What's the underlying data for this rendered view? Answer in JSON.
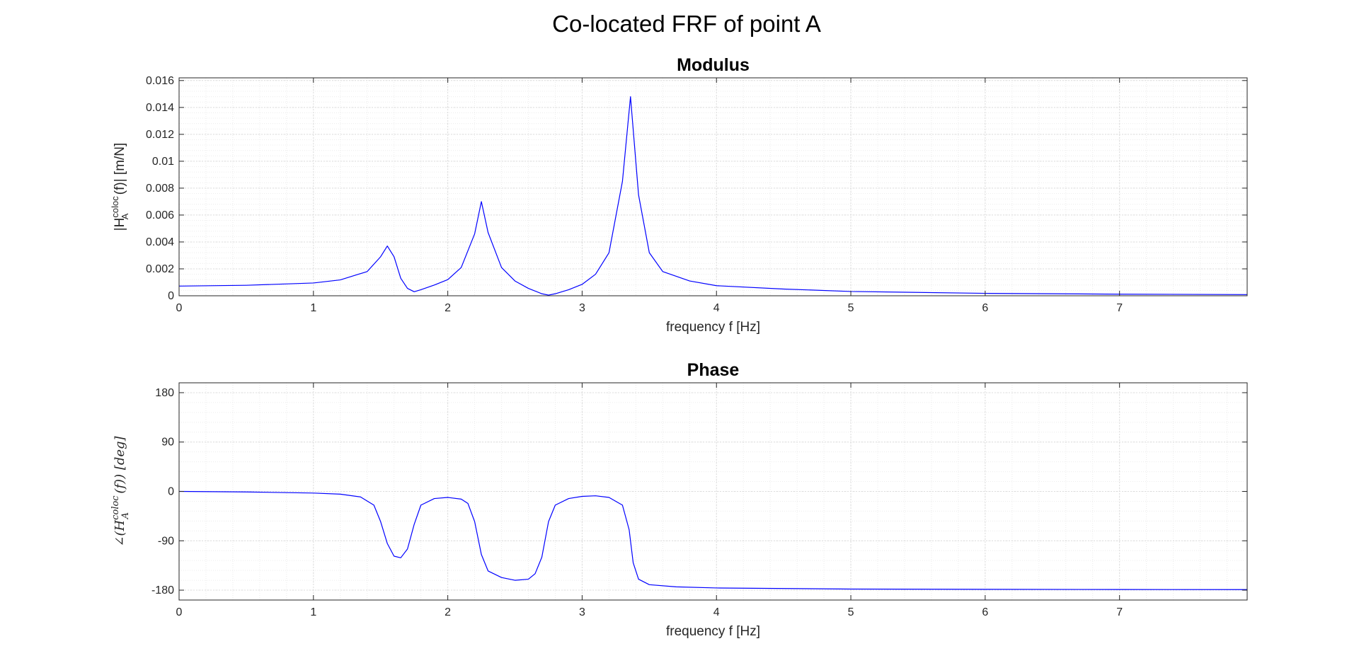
{
  "figure": {
    "title": "Co-located FRF of point A",
    "line_color": "#0000ff",
    "grid_color": "#dcdcdc",
    "minor_grid_color": "#ececec"
  },
  "chart_data": [
    {
      "type": "line",
      "title": "Modulus",
      "xlabel": "frequency f [Hz]",
      "ylabel": {
        "pre": "|H",
        "sup": "coloc",
        "sub": "A",
        "post": "(f)|   [m/N]"
      },
      "xlim": [
        0,
        7.95
      ],
      "ylim": [
        0,
        0.0162
      ],
      "xticks": [
        0,
        1,
        2,
        3,
        4,
        5,
        6,
        7
      ],
      "xtick_labels": [
        "0",
        "1",
        "2",
        "3",
        "4",
        "5",
        "6",
        "7"
      ],
      "yticks": [
        0,
        0.002,
        0.004,
        0.006,
        0.008,
        0.01,
        0.012,
        0.014,
        0.016
      ],
      "ytick_labels": [
        "0",
        "0.002",
        "0.004",
        "0.006",
        "0.008",
        "0.01",
        "0.012",
        "0.014",
        "0.016"
      ],
      "grid": "major+minor",
      "series": [
        {
          "x": [
            0,
            0.5,
            1.0,
            1.2,
            1.4,
            1.5,
            1.55,
            1.6,
            1.65,
            1.7,
            1.75,
            1.8,
            1.9,
            2.0,
            2.1,
            2.2,
            2.25,
            2.3,
            2.4,
            2.5,
            2.6,
            2.7,
            2.75,
            2.8,
            2.9,
            3.0,
            3.1,
            3.2,
            3.3,
            3.36,
            3.42,
            3.5,
            3.6,
            3.8,
            4.0,
            4.5,
            5.0,
            6.0,
            7.0,
            7.95
          ],
          "y": [
            0.00072,
            0.00078,
            0.00095,
            0.00118,
            0.0018,
            0.0029,
            0.0037,
            0.0029,
            0.0013,
            0.00055,
            0.0003,
            0.00045,
            0.0008,
            0.0012,
            0.0021,
            0.0046,
            0.007,
            0.0047,
            0.0021,
            0.0011,
            0.00055,
            0.00015,
            5e-05,
            0.00015,
            0.00045,
            0.00085,
            0.0016,
            0.0032,
            0.0085,
            0.0148,
            0.0075,
            0.0032,
            0.0018,
            0.0011,
            0.00075,
            0.0005,
            0.00032,
            0.00018,
            0.00012,
            9e-05
          ]
        }
      ]
    },
    {
      "type": "line",
      "title": "Phase",
      "xlabel": "frequency f [Hz]",
      "ylabel": {
        "pre": "∠(H",
        "sup": "coloc",
        "sub": "A",
        "post": "(f))   [deg]"
      },
      "xlim": [
        0,
        7.95
      ],
      "ylim": [
        -198,
        198
      ],
      "xticks": [
        0,
        1,
        2,
        3,
        4,
        5,
        6,
        7
      ],
      "xtick_labels": [
        "0",
        "1",
        "2",
        "3",
        "4",
        "5",
        "6",
        "7"
      ],
      "yticks": [
        -180,
        -90,
        0,
        90,
        180
      ],
      "ytick_labels": [
        "-180",
        "-90",
        "0",
        "90",
        "180"
      ],
      "grid": "major+minor",
      "series": [
        {
          "x": [
            0,
            0.5,
            1.0,
            1.2,
            1.35,
            1.45,
            1.5,
            1.55,
            1.6,
            1.65,
            1.7,
            1.75,
            1.8,
            1.9,
            2.0,
            2.1,
            2.15,
            2.2,
            2.25,
            2.3,
            2.4,
            2.5,
            2.6,
            2.65,
            2.7,
            2.75,
            2.8,
            2.9,
            3.0,
            3.1,
            3.2,
            3.3,
            3.35,
            3.38,
            3.42,
            3.5,
            3.7,
            4.0,
            5.0,
            6.0,
            7.0,
            7.95
          ],
          "y": [
            0,
            -1,
            -3,
            -5,
            -10,
            -25,
            -55,
            -95,
            -118,
            -121,
            -105,
            -60,
            -25,
            -13,
            -11,
            -14,
            -22,
            -55,
            -115,
            -145,
            -157,
            -162,
            -160,
            -150,
            -120,
            -55,
            -25,
            -13,
            -9,
            -8,
            -11,
            -25,
            -70,
            -130,
            -160,
            -170,
            -174,
            -176,
            -178,
            -178.5,
            -178.8,
            -179
          ]
        }
      ]
    }
  ]
}
